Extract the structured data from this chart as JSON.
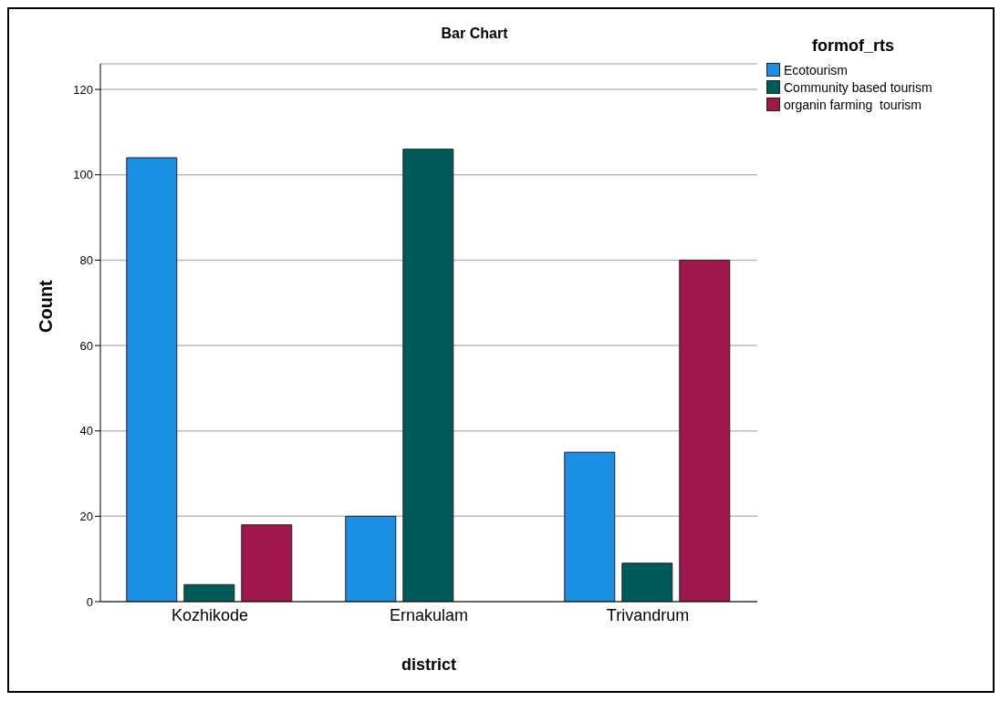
{
  "chart_data": {
    "type": "bar",
    "title": "Bar Chart",
    "xlabel": "district",
    "ylabel": "Count",
    "legend_title": "formof_rts",
    "categories": [
      "Kozhikode",
      "Ernakulam",
      "Trivandrum"
    ],
    "series": [
      {
        "name": "Ecotourism",
        "color": "#1a8fe3",
        "values": [
          104,
          20,
          35
        ]
      },
      {
        "name": "Community based tourism",
        "color": "#005a5a",
        "values": [
          4,
          106,
          9
        ]
      },
      {
        "name": "organin farming  tourism",
        "color": "#a0174e",
        "values": [
          18,
          null,
          80
        ]
      }
    ],
    "ylim": [
      0,
      126
    ],
    "yticks": [
      0,
      20,
      40,
      60,
      80,
      100,
      120
    ],
    "grid": "y",
    "legend": "top right"
  }
}
